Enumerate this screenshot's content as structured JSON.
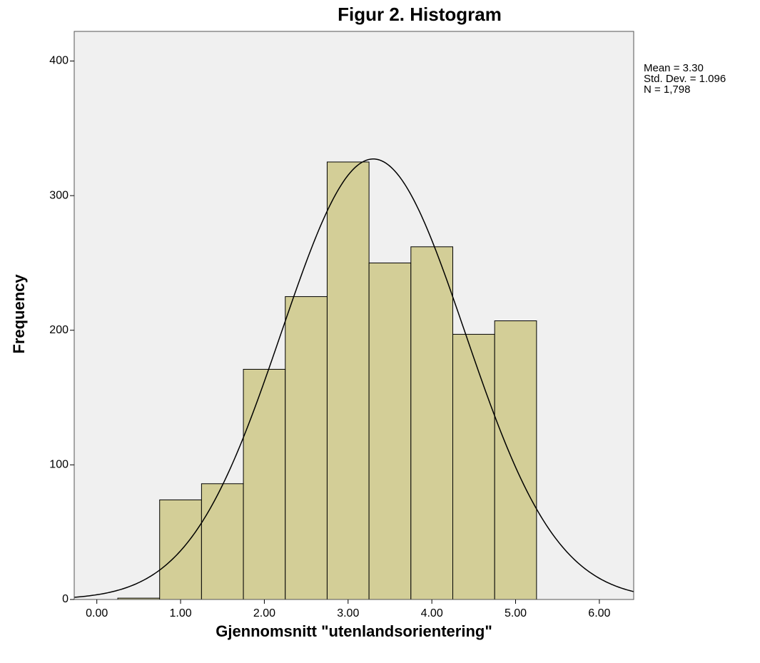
{
  "chart_data": {
    "type": "histogram",
    "title": "Figur 2. Histogram",
    "x_label": "Gjennomsnitt \"utenlandsorientering\"",
    "y_label": "Frequency",
    "bins": [
      0.25,
      0.75,
      1.25,
      1.75,
      2.25,
      2.75,
      3.25,
      3.75,
      4.25,
      4.75,
      5.25
    ],
    "counts": [
      1,
      74,
      86,
      171,
      225,
      325,
      250,
      262,
      197,
      207
    ],
    "color": "#d3ce97",
    "background": "#f0f0f0",
    "xlim": [
      -0.27,
      6.41
    ],
    "ylim": [
      0,
      422
    ],
    "xticks": [
      {
        "value": 0,
        "label": "0.00"
      },
      {
        "value": 1,
        "label": "1.00"
      },
      {
        "value": 2,
        "label": "2.00"
      },
      {
        "value": 3,
        "label": "3.00"
      },
      {
        "value": 4,
        "label": "4.00"
      },
      {
        "value": 5,
        "label": "5.00"
      },
      {
        "value": 6,
        "label": "6.00"
      }
    ],
    "yticks": [
      0,
      100,
      200,
      300,
      400
    ],
    "normal_curve": {
      "mean": 3.3,
      "sd": 1.096,
      "n": 1798
    },
    "annotations": [
      "Mean = 3.30",
      "Std. Dev. = 1.096",
      "N = 1,798"
    ]
  }
}
